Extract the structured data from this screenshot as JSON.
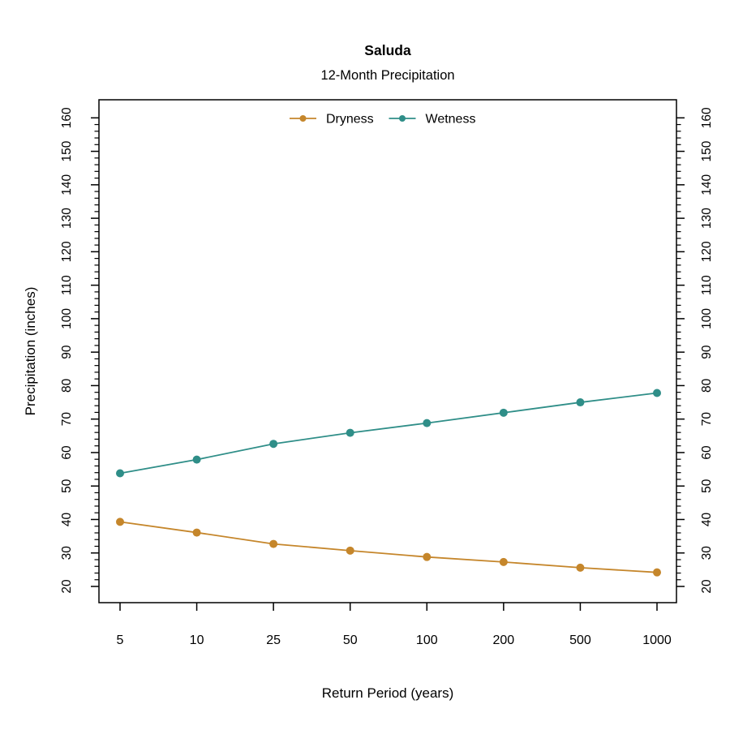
{
  "chart_data": {
    "type": "line",
    "title": "Saluda",
    "subtitle": "12-Month Precipitation",
    "xlabel": "Return Period (years)",
    "ylabel": "Precipitation (inches)",
    "x_categories": [
      "5",
      "10",
      "25",
      "50",
      "100",
      "200",
      "500",
      "1000"
    ],
    "y_axis": {
      "min": 20,
      "max": 160,
      "major_step": 10,
      "minor_step": 2,
      "mirrored_right": true
    },
    "series": [
      {
        "name": "Dryness",
        "color": "#C5862B",
        "values": [
          39.3,
          36.1,
          32.7,
          30.7,
          28.8,
          27.3,
          25.6,
          24.2
        ]
      },
      {
        "name": "Wetness",
        "color": "#2F8E88",
        "values": [
          53.8,
          57.9,
          62.6,
          65.9,
          68.8,
          71.9,
          75.0,
          77.8
        ]
      }
    ],
    "legend": {
      "position": "top-center-inside",
      "entries": [
        "Dryness",
        "Wetness"
      ]
    },
    "marker": "filled-circle",
    "grid": false,
    "background_color": "#FFFFFF",
    "axis_color": "#000000"
  }
}
